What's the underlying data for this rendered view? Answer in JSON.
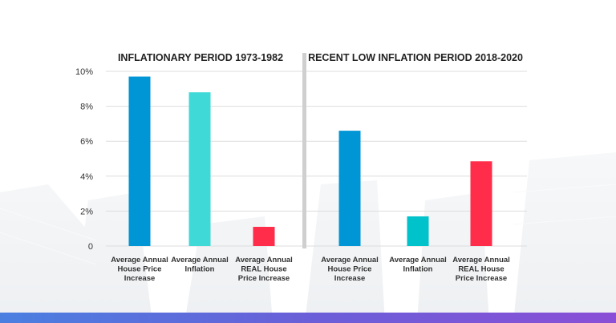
{
  "colors": {
    "blue": "#0096d6",
    "light_teal": "#3fdad8",
    "teal": "#00c2cb",
    "red": "#ff2d4a",
    "divider": "#cfcfcf",
    "grid": "#dddddd"
  },
  "chart_data": {
    "type": "bar",
    "ylim": [
      0,
      10
    ],
    "yticks": [
      {
        "value": 0,
        "label": "0"
      },
      {
        "value": 2,
        "label": "2%"
      },
      {
        "value": 4,
        "label": "4%"
      },
      {
        "value": 6,
        "label": "6%"
      },
      {
        "value": 8,
        "label": "8%"
      },
      {
        "value": 10,
        "label": "10%"
      }
    ],
    "grid": true,
    "panels": [
      {
        "title": "INFLATIONARY PERIOD 1973-1982",
        "bars": [
          {
            "label": [
              "Average Annual",
              "House Price",
              "Increase"
            ],
            "value": 9.7,
            "color": "#0096d6"
          },
          {
            "label": [
              "Average Annual",
              "Inflation"
            ],
            "value": 8.8,
            "color": "#3fdad8"
          },
          {
            "label": [
              "Average Annual",
              "REAL House",
              "Price Increase"
            ],
            "value": 1.1,
            "color": "#ff2d4a"
          }
        ]
      },
      {
        "title": "RECENT LOW INFLATION PERIOD 2018-2020",
        "bars": [
          {
            "label": [
              "Average Annual",
              "House Price",
              "Increase"
            ],
            "value": 6.6,
            "color": "#0096d6"
          },
          {
            "label": [
              "Average Annual",
              "Inflation"
            ],
            "value": 1.7,
            "color": "#00c2cb"
          },
          {
            "label": [
              "Average Annual",
              "REAL House",
              "Price Increase"
            ],
            "value": 4.85,
            "color": "#ff2d4a"
          }
        ]
      }
    ]
  }
}
